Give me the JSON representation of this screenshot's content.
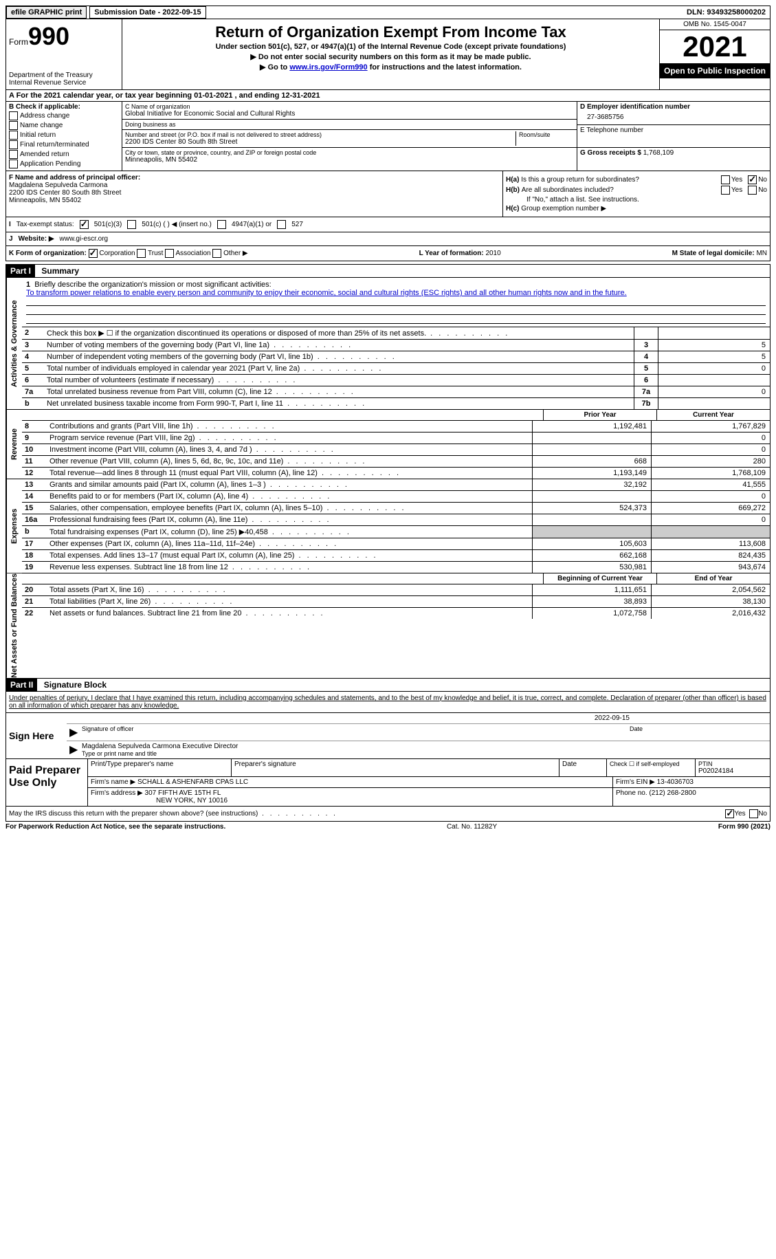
{
  "top_bar": {
    "efile": "efile GRAPHIC print",
    "submission_label": "Submission Date - 2022-09-15",
    "dln": "DLN: 93493258000202"
  },
  "header": {
    "form_word": "Form",
    "form_number": "990",
    "title": "Return of Organization Exempt From Income Tax",
    "subtitle": "Under section 501(c), 527, or 4947(a)(1) of the Internal Revenue Code (except private foundations)",
    "note1": "▶ Do not enter social security numbers on this form as it may be made public.",
    "note2_prefix": "▶ Go to ",
    "note2_link": "www.irs.gov/Form990",
    "note2_suffix": " for instructions and the latest information.",
    "dept": "Department of the Treasury",
    "irs": "Internal Revenue Service",
    "omb": "OMB No. 1545-0047",
    "year": "2021",
    "inspection": "Open to Public Inspection"
  },
  "period": "A For the 2021 calendar year, or tax year beginning 01-01-2021    , and ending 12-31-2021",
  "check": {
    "header": "B Check if applicable:",
    "items": [
      "Address change",
      "Name change",
      "Initial return",
      "Final return/terminated",
      "Amended return",
      "Application Pending"
    ]
  },
  "entity": {
    "name_label": "C Name of organization",
    "name": "Global Initiative for Economic Social and Cultural Rights",
    "dba_label": "Doing business as",
    "street_label": "Number and street (or P.O. box if mail is not delivered to street address)",
    "room_label": "Room/suite",
    "street": "2200 IDS Center 80 South 8th Street",
    "city_label": "City or town, state or province, country, and ZIP or foreign postal code",
    "city": "Minneapolis, MN  55402"
  },
  "id_col": {
    "ein_label": "D Employer identification number",
    "ein": "27-3685756",
    "phone_label": "E Telephone number",
    "receipts_label": "G Gross receipts $",
    "receipts": "1,768,109"
  },
  "fgh": {
    "f_label": "F Name and address of principal officer:",
    "f_name": "Magdalena Sepulveda Carmona",
    "f_addr1": "2200 IDS Center 80 South 8th Street",
    "f_addr2": "Minneapolis, MN  55402",
    "ha_label": "H(a)",
    "ha_q": "Is this a group return for subordinates?",
    "hb_label": "H(b)",
    "hb_q": "Are all subordinates included?",
    "hb_note": "If \"No,\" attach a list. See instructions.",
    "hc_label": "H(c)",
    "hc_q": "Group exemption number ▶",
    "yes": "Yes",
    "no": "No"
  },
  "status": {
    "i_label": "I",
    "label": "Tax-exempt status:",
    "opt1": "501(c)(3)",
    "opt2": "501(c) (  ) ◀ (insert no.)",
    "opt3": "4947(a)(1) or",
    "opt4": "527"
  },
  "website": {
    "j_label": "J",
    "label": "Website: ▶",
    "url": "www.gi-escr.org"
  },
  "kl": {
    "k_label": "K Form of organization:",
    "k_corp": "Corporation",
    "k_trust": "Trust",
    "k_assoc": "Association",
    "k_other": "Other ▶",
    "l_label": "L Year of formation:",
    "l_val": "2010",
    "m_label": "M State of legal domicile:",
    "m_val": "MN"
  },
  "part1": {
    "header": "Part I",
    "title": "Summary"
  },
  "sidebar": {
    "activities": "Activities & Governance",
    "revenue": "Revenue",
    "expenses": "Expenses",
    "netassets": "Net Assets or Fund Balances"
  },
  "mission": {
    "n": "1",
    "label": "Briefly describe the organization's mission or most significant activities:",
    "text": "To transform power relations to enable every person and community to enjoy their economic, social and cultural rights (ESC rights) and all other human rights now and in the future."
  },
  "gov_rows": [
    {
      "n": "2",
      "desc": "Check this box ▶ ☐ if the organization discontinued its operations or disposed of more than 25% of its net assets.",
      "box": "",
      "val": ""
    },
    {
      "n": "3",
      "desc": "Number of voting members of the governing body (Part VI, line 1a)",
      "box": "3",
      "val": "5"
    },
    {
      "n": "4",
      "desc": "Number of independent voting members of the governing body (Part VI, line 1b)",
      "box": "4",
      "val": "5"
    },
    {
      "n": "5",
      "desc": "Total number of individuals employed in calendar year 2021 (Part V, line 2a)",
      "box": "5",
      "val": "0"
    },
    {
      "n": "6",
      "desc": "Total number of volunteers (estimate if necessary)",
      "box": "6",
      "val": ""
    },
    {
      "n": "7a",
      "desc": "Total unrelated business revenue from Part VIII, column (C), line 12",
      "box": "7a",
      "val": "0"
    },
    {
      "n": "b",
      "desc": "Net unrelated business taxable income from Form 990-T, Part I, line 11",
      "box": "7b",
      "val": ""
    }
  ],
  "fin_header": {
    "prior": "Prior Year",
    "current": "Current Year"
  },
  "revenue_rows": [
    {
      "n": "8",
      "desc": "Contributions and grants (Part VIII, line 1h)",
      "v1": "1,192,481",
      "v2": "1,767,829"
    },
    {
      "n": "9",
      "desc": "Program service revenue (Part VIII, line 2g)",
      "v1": "",
      "v2": "0"
    },
    {
      "n": "10",
      "desc": "Investment income (Part VIII, column (A), lines 3, 4, and 7d )",
      "v1": "",
      "v2": "0"
    },
    {
      "n": "11",
      "desc": "Other revenue (Part VIII, column (A), lines 5, 6d, 8c, 9c, 10c, and 11e)",
      "v1": "668",
      "v2": "280"
    },
    {
      "n": "12",
      "desc": "Total revenue—add lines 8 through 11 (must equal Part VIII, column (A), line 12)",
      "v1": "1,193,149",
      "v2": "1,768,109"
    }
  ],
  "expense_rows": [
    {
      "n": "13",
      "desc": "Grants and similar amounts paid (Part IX, column (A), lines 1–3 )",
      "v1": "32,192",
      "v2": "41,555"
    },
    {
      "n": "14",
      "desc": "Benefits paid to or for members (Part IX, column (A), line 4)",
      "v1": "",
      "v2": "0"
    },
    {
      "n": "15",
      "desc": "Salaries, other compensation, employee benefits (Part IX, column (A), lines 5–10)",
      "v1": "524,373",
      "v2": "669,272"
    },
    {
      "n": "16a",
      "desc": "Professional fundraising fees (Part IX, column (A), line 11e)",
      "v1": "",
      "v2": "0"
    },
    {
      "n": "b",
      "desc": "Total fundraising expenses (Part IX, column (D), line 25) ▶40,458",
      "v1": "shaded",
      "v2": "shaded"
    },
    {
      "n": "17",
      "desc": "Other expenses (Part IX, column (A), lines 11a–11d, 11f–24e)",
      "v1": "105,603",
      "v2": "113,608"
    },
    {
      "n": "18",
      "desc": "Total expenses. Add lines 13–17 (must equal Part IX, column (A), line 25)",
      "v1": "662,168",
      "v2": "824,435"
    },
    {
      "n": "19",
      "desc": "Revenue less expenses. Subtract line 18 from line 12",
      "v1": "530,981",
      "v2": "943,674"
    }
  ],
  "net_header": {
    "begin": "Beginning of Current Year",
    "end": "End of Year"
  },
  "net_rows": [
    {
      "n": "20",
      "desc": "Total assets (Part X, line 16)",
      "v1": "1,111,651",
      "v2": "2,054,562"
    },
    {
      "n": "21",
      "desc": "Total liabilities (Part X, line 26)",
      "v1": "38,893",
      "v2": "38,130"
    },
    {
      "n": "22",
      "desc": "Net assets or fund balances. Subtract line 21 from line 20",
      "v1": "1,072,758",
      "v2": "2,016,432"
    }
  ],
  "part2": {
    "header": "Part II",
    "title": "Signature Block"
  },
  "signature": {
    "perjury": "Under penalties of perjury, I declare that I have examined this return, including accompanying schedules and statements, and to the best of my knowledge and belief, it is true, correct, and complete. Declaration of preparer (other than officer) is based on all information of which preparer has any knowledge.",
    "sign_here": "Sign Here",
    "sig_officer": "Signature of officer",
    "date": "Date",
    "sig_date": "2022-09-15",
    "name_title": "Magdalena Sepulveda Carmona  Executive Director",
    "type_name": "Type or print name and title"
  },
  "preparer": {
    "label": "Paid Preparer Use Only",
    "print_name": "Print/Type preparer's name",
    "prep_sig": "Preparer's signature",
    "date": "Date",
    "check_self": "Check ☐ if self-employed",
    "ptin_label": "PTIN",
    "ptin": "P02024184",
    "firm_name_label": "Firm's name    ▶",
    "firm_name": "SCHALL & ASHENFARB CPAS LLC",
    "firm_ein_label": "Firm's EIN ▶",
    "firm_ein": "13-4036703",
    "firm_addr_label": "Firm's address ▶",
    "firm_addr1": "307 FIFTH AVE 15TH FL",
    "firm_addr2": "NEW YORK, NY  10016",
    "phone_label": "Phone no.",
    "phone": "(212) 268-2800"
  },
  "discuss": {
    "q": "May the IRS discuss this return with the preparer shown above? (see instructions)",
    "yes": "Yes",
    "no": "No"
  },
  "footer": {
    "left": "For Paperwork Reduction Act Notice, see the separate instructions.",
    "center": "Cat. No. 11282Y",
    "right": "Form 990 (2021)"
  }
}
